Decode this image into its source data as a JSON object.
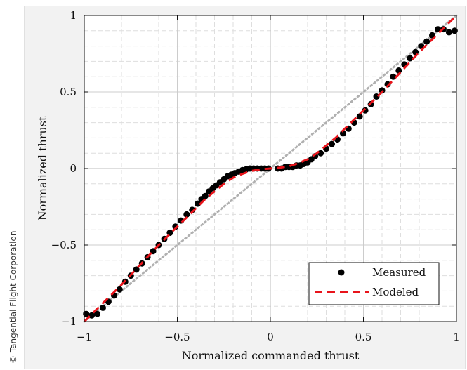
{
  "copyright": "© Tangential Flight Corporation",
  "chart_data": {
    "type": "scatter",
    "title": "",
    "xlabel": "Normalized commanded thrust",
    "ylabel": "Normalized thrust",
    "xlim": [
      -1,
      1
    ],
    "ylim": [
      -1,
      1
    ],
    "x_ticks": [
      -1,
      -0.5,
      0,
      0.5,
      1
    ],
    "x_tick_labels": [
      "−1",
      "−0.5",
      "0",
      "0.5",
      "1"
    ],
    "y_ticks": [
      -1,
      -0.5,
      0,
      0.5,
      1
    ],
    "y_tick_labels": [
      "−1",
      "−0.5",
      "0",
      "0.5",
      "1"
    ],
    "grid": true,
    "legend_position": "bottom-right",
    "colors": {
      "measured": "#000000",
      "modeled": "#e8141b",
      "identity": "#b0b0b0",
      "grid_major": "#cccccc",
      "grid_minor": "#dedede"
    },
    "series": [
      {
        "name": "Measured",
        "style": "markers",
        "x": [
          -0.99,
          -0.96,
          -0.93,
          -0.9,
          -0.87,
          -0.84,
          -0.81,
          -0.78,
          -0.75,
          -0.72,
          -0.69,
          -0.66,
          -0.63,
          -0.6,
          -0.57,
          -0.54,
          -0.51,
          -0.48,
          -0.45,
          -0.42,
          -0.39,
          -0.37,
          -0.35,
          -0.33,
          -0.31,
          -0.29,
          -0.27,
          -0.25,
          -0.23,
          -0.21,
          -0.19,
          -0.17,
          -0.15,
          -0.13,
          -0.11,
          -0.09,
          -0.07,
          -0.05,
          -0.03,
          -0.01,
          0.04,
          0.06,
          0.08,
          0.1,
          0.12,
          0.14,
          0.16,
          0.18,
          0.2,
          0.22,
          0.24,
          0.27,
          0.3,
          0.33,
          0.36,
          0.39,
          0.42,
          0.45,
          0.48,
          0.51,
          0.54,
          0.57,
          0.6,
          0.63,
          0.66,
          0.69,
          0.72,
          0.75,
          0.78,
          0.81,
          0.84,
          0.87,
          0.9,
          0.93,
          0.96,
          0.99
        ],
        "y": [
          -0.95,
          -0.96,
          -0.95,
          -0.91,
          -0.87,
          -0.83,
          -0.79,
          -0.74,
          -0.7,
          -0.66,
          -0.62,
          -0.58,
          -0.54,
          -0.5,
          -0.46,
          -0.42,
          -0.38,
          -0.34,
          -0.3,
          -0.27,
          -0.23,
          -0.2,
          -0.18,
          -0.15,
          -0.13,
          -0.11,
          -0.09,
          -0.07,
          -0.05,
          -0.04,
          -0.03,
          -0.02,
          -0.01,
          -0.005,
          0.0,
          0.0,
          0.0,
          0.0,
          0.0,
          0.0,
          0.0,
          0.0,
          0.01,
          0.01,
          0.01,
          0.02,
          0.02,
          0.03,
          0.04,
          0.06,
          0.08,
          0.1,
          0.13,
          0.16,
          0.19,
          0.23,
          0.26,
          0.3,
          0.34,
          0.38,
          0.42,
          0.47,
          0.51,
          0.55,
          0.6,
          0.64,
          0.68,
          0.72,
          0.76,
          0.8,
          0.83,
          0.87,
          0.91,
          0.91,
          0.89,
          0.9
        ]
      },
      {
        "name": "Modeled",
        "style": "dashed-line",
        "x": [
          -1,
          -0.9,
          -0.8,
          -0.7,
          -0.6,
          -0.5,
          -0.45,
          -0.4,
          -0.35,
          -0.3,
          -0.25,
          -0.2,
          -0.15,
          -0.1,
          -0.05,
          0,
          0.05,
          0.1,
          0.15,
          0.2,
          0.25,
          0.3,
          0.35,
          0.4,
          0.45,
          0.5,
          0.6,
          0.7,
          0.8,
          0.9,
          1
        ],
        "y": [
          -1,
          -0.88,
          -0.76,
          -0.63,
          -0.5,
          -0.38,
          -0.32,
          -0.26,
          -0.2,
          -0.15,
          -0.1,
          -0.06,
          -0.035,
          -0.015,
          -0.005,
          0,
          0.005,
          0.015,
          0.035,
          0.06,
          0.1,
          0.15,
          0.2,
          0.26,
          0.32,
          0.38,
          0.5,
          0.63,
          0.76,
          0.88,
          1
        ]
      },
      {
        "name": "",
        "style": "dotted-line",
        "x": [
          -1,
          1
        ],
        "y": [
          -1,
          1
        ]
      }
    ]
  }
}
